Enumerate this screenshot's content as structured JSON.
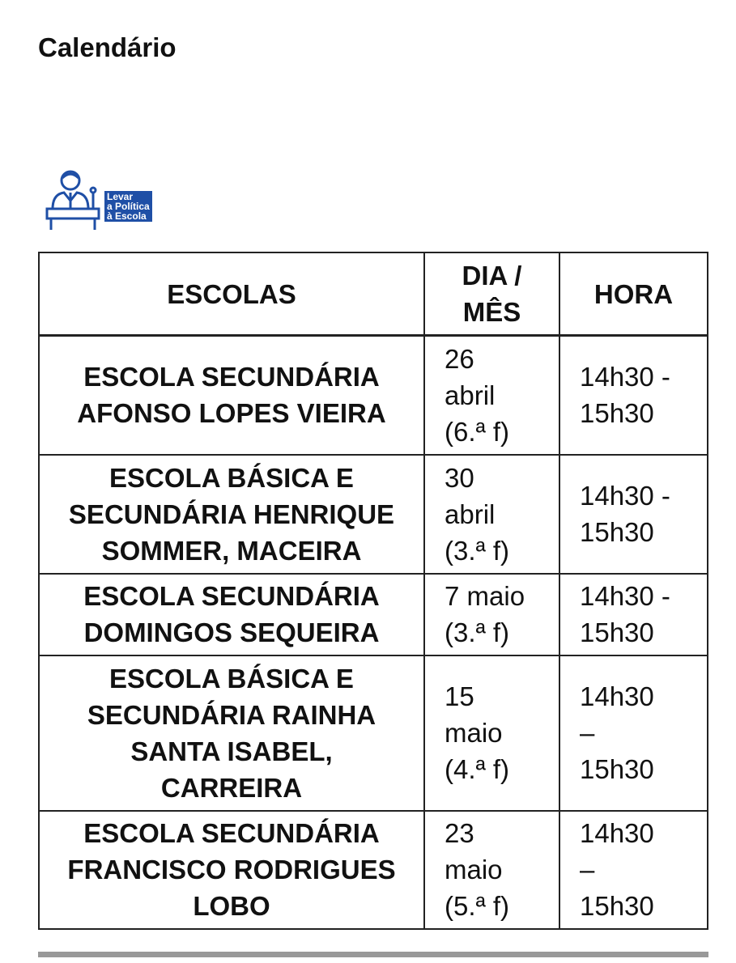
{
  "page_title": "Calendário",
  "logo": {
    "text": "Levar\na Política\nà Escola",
    "icon": "speaker-at-podium-icon",
    "color": "#1f4fa6"
  },
  "table": {
    "headers": [
      "ESCOLAS",
      "DIA /\nMÊS",
      "HORA"
    ],
    "rows": [
      {
        "school": "ESCOLA SECUNDÁRIA\nAFONSO LOPES VIEIRA",
        "date": "26\nabril\n(6.ª f)",
        "hour": "14h30 -\n15h30"
      },
      {
        "school": "ESCOLA BÁSICA E\nSECUNDÁRIA HENRIQUE\nSOMMER, MACEIRA",
        "date": "30\nabril\n(3.ª f)",
        "hour": "14h30 -\n15h30"
      },
      {
        "school": "ESCOLA SECUNDÁRIA\nDOMINGOS SEQUEIRA",
        "date": "7 maio\n(3.ª f)",
        "hour": "14h30 -\n15h30"
      },
      {
        "school": "ESCOLA BÁSICA E\nSECUNDÁRIA RAINHA\nSANTA ISABEL,\nCARREIRA",
        "date": "15\nmaio\n(4.ª f)",
        "hour": "14h30\n–\n15h30"
      },
      {
        "school": "ESCOLA SECUNDÁRIA\nFRANCISCO RODRIGUES\nLOBO",
        "date": "23\nmaio\n(5.ª f)",
        "hour": "14h30\n–\n15h30"
      }
    ]
  }
}
